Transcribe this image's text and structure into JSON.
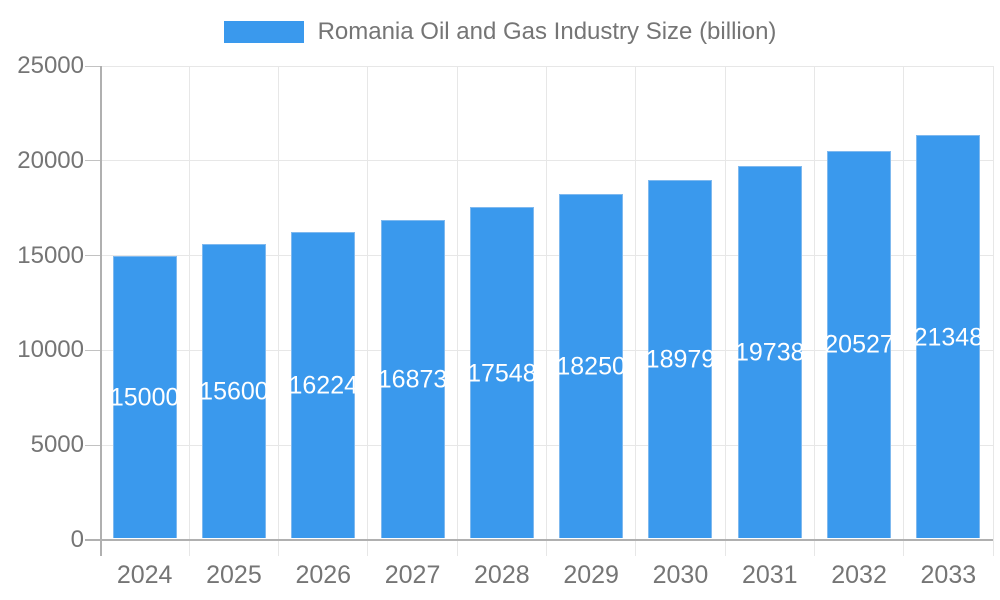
{
  "legend": {
    "label": "Romania Oil and Gas Industry Size (billion)"
  },
  "chart_data": {
    "type": "bar",
    "title": "Romania Oil and Gas Industry Size (billion)",
    "categories": [
      "2024",
      "2025",
      "2026",
      "2027",
      "2028",
      "2029",
      "2030",
      "2031",
      "2032",
      "2033"
    ],
    "values": [
      15000,
      15600,
      16224,
      16873,
      17548,
      18250,
      18979,
      19738,
      20527,
      21348
    ],
    "bar_labels": [
      "15000",
      "15600",
      "16224",
      "16873",
      "17548",
      "18250",
      "18979",
      "19738",
      "20527",
      "21348"
    ],
    "xlabel": "",
    "ylabel": "",
    "ylim": [
      0,
      25000
    ],
    "yticks": [
      0,
      5000,
      10000,
      15000,
      20000,
      25000
    ],
    "ytick_labels": [
      "0",
      "5000",
      "10000",
      "15000",
      "20000",
      "25000"
    ],
    "grid": true,
    "legend_position": "top",
    "colors": {
      "bar_fill": "#3A99ED",
      "bar_edge": "#7FB9EF",
      "bar_label_text": "#ffffff",
      "axis_line": "#b0b0b0",
      "gridline": "#e7e7e7",
      "tick_mark": "#c2c2c2",
      "axis_text": "#757575"
    }
  }
}
